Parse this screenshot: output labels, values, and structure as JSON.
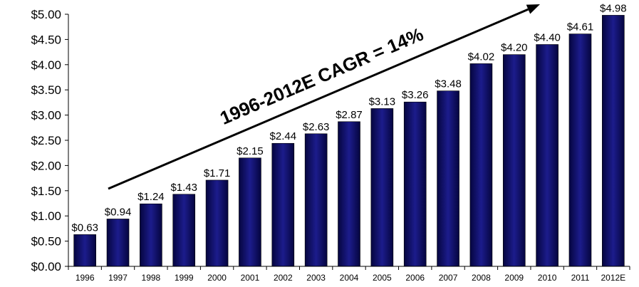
{
  "chart_data": {
    "type": "bar",
    "title": "",
    "xlabel": "",
    "ylabel": "",
    "categories": [
      "1996",
      "1997",
      "1998",
      "1999",
      "2000",
      "2001",
      "2002",
      "2003",
      "2004",
      "2005",
      "2006",
      "2007",
      "2008",
      "2009",
      "2010",
      "2011",
      "2012E"
    ],
    "values": [
      0.63,
      0.94,
      1.24,
      1.43,
      1.71,
      2.15,
      2.44,
      2.63,
      2.87,
      3.13,
      3.26,
      3.48,
      4.02,
      4.2,
      4.4,
      4.61,
      4.98
    ],
    "value_labels": [
      "$0.63",
      "$0.94",
      "$1.24",
      "$1.43",
      "$1.71",
      "$2.15",
      "$2.44",
      "$2.63",
      "$2.87",
      "$3.13",
      "$3.26",
      "$3.48",
      "$4.02",
      "$4.20",
      "$4.40",
      "$4.61",
      "$4.98"
    ],
    "ylim": [
      0,
      5
    ],
    "y_ticks": [
      0,
      0.5,
      1,
      1.5,
      2,
      2.5,
      3,
      3.5,
      4,
      4.5,
      5
    ],
    "y_tick_labels": [
      "$0.00",
      "$0.50",
      "$1.00",
      "$1.50",
      "$2.00",
      "$2.50",
      "$3.00",
      "$3.50",
      "$4.00",
      "$4.50",
      "$5.00"
    ],
    "grid": false,
    "bar_color": "#16167a",
    "annotation": {
      "text": "1996-2012E CAGR = 14%"
    }
  }
}
